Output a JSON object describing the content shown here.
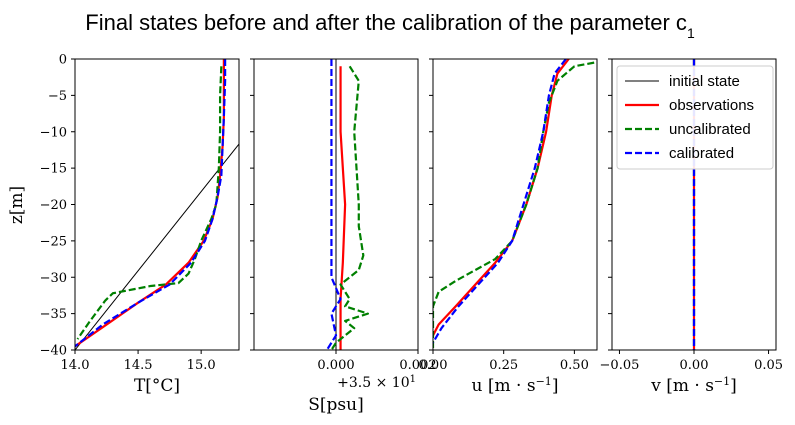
{
  "figure": {
    "title": "Final states before and after the calibration of the parameter c",
    "title_symbol_sub": "1",
    "ylabel": "z[m]",
    "colors": {
      "initial state": "#000000",
      "observations": "#ff0000",
      "uncalibrated": "#008000",
      "calibrated": "#0000ff"
    },
    "legend": {
      "panel": 3,
      "placement": "upper-left",
      "items": [
        {
          "label": "initial state",
          "color": "#000000",
          "style": "solid",
          "width": 1
        },
        {
          "label": "observations",
          "color": "#ff0000",
          "style": "solid",
          "width": 2.2
        },
        {
          "label": "uncalibrated",
          "color": "#008000",
          "style": "dashed",
          "width": 2.2
        },
        {
          "label": "calibrated",
          "color": "#0000ff",
          "style": "dashed",
          "width": 2.2
        }
      ]
    }
  },
  "chart_data": [
    {
      "type": "line",
      "xlabel": "T[°C]",
      "xlim": [
        14.0,
        15.3
      ],
      "ylim": [
        -40,
        0
      ],
      "xticks": [
        14.0,
        14.5,
        15.0
      ],
      "xticklabels": [
        "14.0",
        "14.5",
        "15.0"
      ],
      "yticks": [
        0,
        -5,
        -10,
        -15,
        -20,
        -25,
        -30,
        -35,
        -40
      ],
      "yticklabels": [
        "0",
        "−5",
        "−10",
        "−15",
        "−20",
        "−25",
        "−30",
        "−35",
        "−40"
      ],
      "series": [
        {
          "name": "initial state",
          "points": [
            [
              14.0,
              -40
            ],
            [
              15.3,
              -11.7
            ]
          ]
        },
        {
          "name": "observations",
          "points": [
            [
              15.18,
              0
            ],
            [
              15.18,
              -3
            ],
            [
              15.18,
              -8
            ],
            [
              15.17,
              -12
            ],
            [
              15.15,
              -16
            ],
            [
              15.13,
              -19
            ],
            [
              15.09,
              -22
            ],
            [
              15.02,
              -25
            ],
            [
              14.9,
              -28
            ],
            [
              14.72,
              -31
            ],
            [
              14.5,
              -33.5
            ],
            [
              14.25,
              -36.5
            ],
            [
              14.0,
              -39.5
            ]
          ]
        },
        {
          "name": "uncalibrated",
          "points": [
            [
              15.16,
              -1
            ],
            [
              15.15,
              -5
            ],
            [
              15.15,
              -10
            ],
            [
              15.14,
              -15
            ],
            [
              15.12,
              -20
            ],
            [
              15.08,
              -22
            ],
            [
              15.0,
              -25
            ],
            [
              14.95,
              -27.5
            ],
            [
              14.9,
              -29.5
            ],
            [
              14.82,
              -30.8
            ],
            [
              14.6,
              -31.2
            ],
            [
              14.3,
              -32.2
            ],
            [
              14.24,
              -33.2
            ],
            [
              14.12,
              -36
            ],
            [
              14.02,
              -38.5
            ]
          ]
        },
        {
          "name": "calibrated",
          "points": [
            [
              15.19,
              0
            ],
            [
              15.19,
              -3
            ],
            [
              15.18,
              -8
            ],
            [
              15.17,
              -12
            ],
            [
              15.16,
              -16
            ],
            [
              15.13,
              -19
            ],
            [
              15.09,
              -22
            ],
            [
              15.03,
              -25
            ],
            [
              14.92,
              -28
            ],
            [
              14.75,
              -31
            ],
            [
              14.5,
              -33.5
            ],
            [
              14.22,
              -36.5
            ],
            [
              14.0,
              -39.5
            ]
          ]
        }
      ]
    },
    {
      "type": "line",
      "xlabel": "S[psu]",
      "offset_label": "+3.5 × 10",
      "offset_exponent": "1",
      "xlim": [
        -0.0018,
        0.0018
      ],
      "ylim": [
        -40,
        0
      ],
      "xticks": [
        0.0,
        0.0018
      ],
      "xticklabels": [
        "0.000",
        "0.002"
      ],
      "yticks": [
        0,
        -5,
        -10,
        -15,
        -20,
        -25,
        -30,
        -35,
        -40
      ],
      "series": [
        {
          "name": "initial state",
          "points": [
            [
              0.0,
              0
            ],
            [
              0.0,
              -40
            ]
          ]
        },
        {
          "name": "observations",
          "points": [
            [
              0.0001,
              -1
            ],
            [
              0.0001,
              -10
            ],
            [
              0.0002,
              -20
            ],
            [
              0.00015,
              -28
            ],
            [
              0.0001,
              -33
            ],
            [
              0.0001,
              -38
            ],
            [
              0.0001,
              -40
            ]
          ]
        },
        {
          "name": "uncalibrated",
          "points": [
            [
              0.0003,
              -1
            ],
            [
              0.0005,
              -3
            ],
            [
              0.0004,
              -10
            ],
            [
              0.0005,
              -20
            ],
            [
              0.0005,
              -23
            ],
            [
              0.0006,
              -27
            ],
            [
              0.0005,
              -29
            ],
            [
              0.0001,
              -31
            ],
            [
              0.0003,
              -33
            ],
            [
              0.0002,
              -34
            ],
            [
              0.0007,
              -35
            ],
            [
              0.0002,
              -36
            ],
            [
              0.0004,
              -37
            ],
            [
              0.0,
              -39
            ],
            [
              -0.0001,
              -40
            ]
          ]
        },
        {
          "name": "calibrated",
          "points": [
            [
              -0.0001,
              0
            ],
            [
              -0.0001,
              -10
            ],
            [
              -0.0001,
              -20
            ],
            [
              -0.0001,
              -30
            ],
            [
              0.0001,
              -33
            ],
            [
              -0.0001,
              -35
            ],
            [
              0.0,
              -38
            ],
            [
              -0.0002,
              -40
            ]
          ]
        }
      ]
    },
    {
      "type": "line",
      "xlabel": "u [m · s−1]",
      "xlim": [
        0.0,
        0.58
      ],
      "ylim": [
        -40,
        0
      ],
      "xticks": [
        0.0,
        0.25,
        0.5
      ],
      "xticklabels": [
        "0.00",
        "0.25",
        "0.50"
      ],
      "yticks": [
        0,
        -5,
        -10,
        -15,
        -20,
        -25,
        -30,
        -35,
        -40
      ],
      "series": [
        {
          "name": "initial state",
          "points": [
            [
              0.0,
              0
            ],
            [
              0.0,
              -40
            ]
          ]
        },
        {
          "name": "observations",
          "points": [
            [
              0.48,
              0
            ],
            [
              0.44,
              -2
            ],
            [
              0.42,
              -5
            ],
            [
              0.4,
              -10
            ],
            [
              0.37,
              -15
            ],
            [
              0.33,
              -20
            ],
            [
              0.28,
              -25
            ],
            [
              0.22,
              -28
            ],
            [
              0.15,
              -31
            ],
            [
              0.08,
              -34
            ],
            [
              0.02,
              -36.5
            ],
            [
              0.0,
              -38
            ]
          ]
        },
        {
          "name": "uncalibrated",
          "points": [
            [
              0.57,
              -0.5
            ],
            [
              0.5,
              -1
            ],
            [
              0.44,
              -3
            ],
            [
              0.41,
              -6
            ],
            [
              0.39,
              -10
            ],
            [
              0.37,
              -15
            ],
            [
              0.33,
              -20
            ],
            [
              0.28,
              -25
            ],
            [
              0.22,
              -27.5
            ],
            [
              0.15,
              -29
            ],
            [
              0.08,
              -30.5
            ],
            [
              0.02,
              -32
            ],
            [
              0.0,
              -34
            ],
            [
              0.0,
              -40
            ]
          ]
        },
        {
          "name": "calibrated",
          "points": [
            [
              0.47,
              0
            ],
            [
              0.43,
              -2
            ],
            [
              0.41,
              -5
            ],
            [
              0.39,
              -10
            ],
            [
              0.36,
              -15
            ],
            [
              0.32,
              -20
            ],
            [
              0.28,
              -25
            ],
            [
              0.23,
              -28
            ],
            [
              0.16,
              -31
            ],
            [
              0.09,
              -34
            ],
            [
              0.03,
              -37
            ],
            [
              0.0,
              -39
            ]
          ]
        }
      ]
    },
    {
      "type": "line",
      "xlabel": "v [m · s−1]",
      "xlim": [
        -0.055,
        0.055
      ],
      "ylim": [
        -40,
        0
      ],
      "xticks": [
        -0.05,
        0.0,
        0.05
      ],
      "xticklabels": [
        "−0.05",
        "0.00",
        "0.05"
      ],
      "yticks": [
        0,
        -5,
        -10,
        -15,
        -20,
        -25,
        -30,
        -35,
        -40
      ],
      "series": [
        {
          "name": "initial state",
          "points": [
            [
              0.0,
              0
            ],
            [
              0.0,
              -40
            ]
          ]
        },
        {
          "name": "observations",
          "points": [
            [
              0.0,
              0
            ],
            [
              0.0,
              -40
            ]
          ]
        },
        {
          "name": "uncalibrated",
          "points": [
            [
              0.0,
              0
            ],
            [
              0.0,
              -40
            ]
          ]
        },
        {
          "name": "calibrated",
          "points": [
            [
              0.0,
              0
            ],
            [
              0.0,
              -40
            ]
          ]
        }
      ]
    }
  ]
}
